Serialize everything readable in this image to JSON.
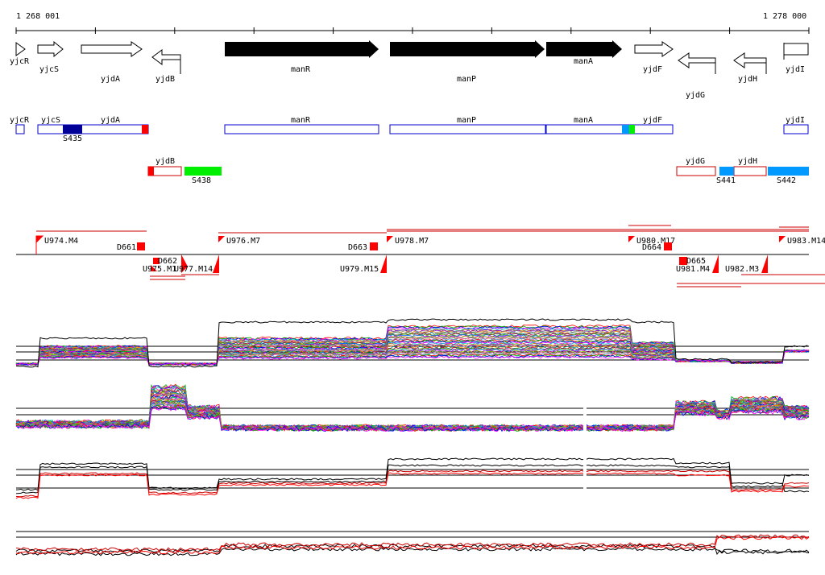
{
  "axis": {
    "start_label": "1 268 001",
    "end_label": "1 278 000"
  },
  "genes": [
    {
      "name": "yjcR",
      "strand": "+",
      "filled": false
    },
    {
      "name": "yjcS",
      "strand": "+",
      "filled": false
    },
    {
      "name": "yjdA",
      "strand": "+",
      "filled": false
    },
    {
      "name": "yjdB",
      "strand": "-",
      "filled": false
    },
    {
      "name": "manR",
      "strand": "+",
      "filled": true
    },
    {
      "name": "manP",
      "strand": "+",
      "filled": true
    },
    {
      "name": "manA",
      "strand": "+",
      "filled": true
    },
    {
      "name": "yjdF",
      "strand": "+",
      "filled": false
    },
    {
      "name": "yjdG",
      "strand": "-",
      "filled": false
    },
    {
      "name": "yjdH",
      "strand": "-",
      "filled": false
    },
    {
      "name": "yjdI",
      "strand": "+",
      "filled": false
    }
  ],
  "plus_track": {
    "gene_labels": [
      "yjcR",
      "yjcS",
      "yjdA",
      "manR",
      "manP",
      "manA",
      "yjdF",
      "yjdI"
    ],
    "segment_labels": [
      "S435"
    ]
  },
  "minus_track": {
    "gene_labels": [
      "yjdB",
      "yjdG",
      "yjdH"
    ],
    "segment_labels": [
      "S438",
      "S441",
      "S442"
    ]
  },
  "upshift_labels": [
    "U974.M4",
    "U975.M1",
    "U976.M7",
    "U977.M14",
    "U978.M7",
    "U979.M15",
    "U980.M17",
    "U981.M4",
    "U982.M3",
    "U983.M14"
  ],
  "downshift_labels": [
    "D661",
    "D662",
    "D663",
    "D664",
    "D665"
  ],
  "colors": {
    "feature": "#0000cc",
    "segment_dark": "#000099",
    "segment_light": "#0099ff",
    "segment_green": "#00ee00",
    "marker": "#ff0000",
    "minus_outline": "#cc0000"
  }
}
